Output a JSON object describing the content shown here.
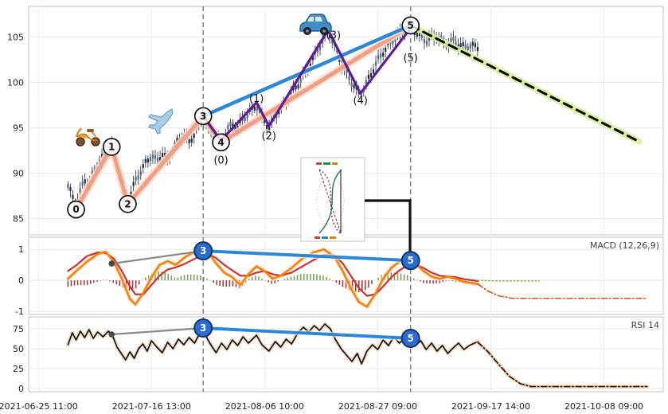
{
  "axes": {
    "x_tick_labels": [
      "2021-06-25 11:00",
      "2021-07-16 13:00",
      "2021-08-06 10:00",
      "2021-08-27 09:00",
      "2021-09-17 14:00",
      "2021-10-08 09:00"
    ],
    "x_tick_days": [
      0,
      21,
      42,
      63,
      84,
      105
    ]
  },
  "indicators": {
    "macd_label": "MACD (12,26,9)",
    "rsi_label": "RSI 14"
  },
  "colors": {
    "impulse": "#f09e86",
    "impulse_glow": "#fbd9c8",
    "blue_line": "#2e86d6",
    "purple_line": "#5e1d96",
    "projection_glow": "#d6ef9a",
    "projection": "#000000",
    "macd_fast": "#f5820b",
    "macd_signal": "#cc3333",
    "hist_pos": "#6a9a3a",
    "hist_neg": "#8e2a2a",
    "rsi_line": "#111111",
    "marker_dash": "#6f839e",
    "circle_fill": "#2a6bd4",
    "circle_border": "#16355c"
  },
  "icons": [
    {
      "name": "scooter-icon"
    },
    {
      "name": "airplane-icon"
    },
    {
      "name": "car-icon"
    },
    {
      "name": "inset-mini-chart"
    }
  ],
  "chart_data": {
    "type": "candlestick",
    "x_unit": "days since 2021-06-25 11:00",
    "xlim_days": [
      -1.8,
      116
    ],
    "panels": {
      "price": {
        "ylim": [
          83.2,
          108.4
        ],
        "ticks": [
          85,
          90,
          95,
          100,
          105
        ]
      },
      "macd": {
        "ylim": [
          -1.1,
          1.39
        ],
        "ticks": [
          1,
          0,
          -1
        ]
      },
      "rsi": {
        "ylim": [
          -4,
          90
        ],
        "ticks": [
          75,
          50,
          25,
          0
        ]
      }
    },
    "price_close_anchors": [
      [
        5.5,
        88.6
      ],
      [
        6.2,
        87.6
      ],
      [
        7,
        86.5
      ],
      [
        7.8,
        88.0
      ],
      [
        8.6,
        89.3
      ],
      [
        9.4,
        88.6
      ],
      [
        10.2,
        90.2
      ],
      [
        11,
        91.0
      ],
      [
        12,
        91.8
      ],
      [
        13,
        92.6
      ],
      [
        13.6,
        93.0
      ],
      [
        14.3,
        91.5
      ],
      [
        15,
        90.2
      ],
      [
        15.8,
        88.6
      ],
      [
        16.6,
        86.8
      ],
      [
        17.4,
        88.2
      ],
      [
        18.2,
        89.4
      ],
      [
        19,
        90.2
      ],
      [
        20,
        91.2
      ],
      [
        21,
        92.0
      ],
      [
        22,
        91.3
      ],
      [
        23,
        92.2
      ],
      [
        24,
        91.4
      ],
      [
        25,
        92.8
      ],
      [
        26,
        93.6
      ],
      [
        27,
        94.2
      ],
      [
        28,
        93.4
      ],
      [
        29,
        94.4
      ],
      [
        30,
        95.6
      ],
      [
        30.6,
        96.3
      ],
      [
        31.3,
        95.2
      ],
      [
        32,
        94.6
      ],
      [
        33,
        93.8
      ],
      [
        33.9,
        93.4
      ],
      [
        35,
        94.8
      ],
      [
        36,
        95.4
      ],
      [
        37,
        95.0
      ],
      [
        38,
        96.0
      ],
      [
        39,
        96.6
      ],
      [
        40.5,
        97.5
      ],
      [
        41.5,
        96.2
      ],
      [
        42.8,
        95.0
      ],
      [
        44,
        96.4
      ],
      [
        45,
        97.2
      ],
      [
        46,
        98.0
      ],
      [
        47,
        98.8
      ],
      [
        48,
        99.6
      ],
      [
        49,
        100.6
      ],
      [
        50,
        101.6
      ],
      [
        51,
        102.6
      ],
      [
        52,
        103.8
      ],
      [
        53,
        104.8
      ],
      [
        53.8,
        105.8
      ],
      [
        54.6,
        104.6
      ],
      [
        55.4,
        103.4
      ],
      [
        56.2,
        102.2
      ],
      [
        57,
        101.2
      ],
      [
        58,
        100.2
      ],
      [
        59,
        99.2
      ],
      [
        59.8,
        98.7
      ],
      [
        60.8,
        99.8
      ],
      [
        61.8,
        101.0
      ],
      [
        62.8,
        102.2
      ],
      [
        63.8,
        103.2
      ],
      [
        64.8,
        104.0
      ],
      [
        66,
        104.8
      ],
      [
        67,
        105.3
      ],
      [
        68,
        105.8
      ],
      [
        69.1,
        106.3
      ],
      [
        70,
        105.6
      ],
      [
        71,
        105.0
      ],
      [
        72,
        104.6
      ],
      [
        73,
        104.9
      ],
      [
        74,
        105.1
      ],
      [
        75,
        104.6
      ],
      [
        76,
        104.3
      ],
      [
        77,
        104.6
      ],
      [
        78,
        104.2
      ],
      [
        79,
        103.9
      ],
      [
        80,
        104.1
      ],
      [
        81.6,
        103.9
      ]
    ],
    "elliott_wave": {
      "points": [
        {
          "label": "0",
          "day": 7,
          "price": 86.0
        },
        {
          "label": "1",
          "day": 13.6,
          "price": 92.9
        },
        {
          "label": "2",
          "day": 16.6,
          "price": 86.6
        },
        {
          "label": "3",
          "day": 30.6,
          "price": 96.3
        },
        {
          "label": "4",
          "day": 33.9,
          "price": 93.4
        },
        {
          "label": "5",
          "day": 69.1,
          "price": 106.3
        }
      ]
    },
    "sub_wave": {
      "labels": [
        {
          "label": "(0)",
          "day": 33.9,
          "price": 91.4
        },
        {
          "label": "(1)",
          "day": 40.5,
          "price": 98.2
        },
        {
          "label": "(2)",
          "day": 42.8,
          "price": 94.1
        },
        {
          "label": "(3)",
          "day": 54.8,
          "price": 105.2
        },
        {
          "label": "(4)",
          "day": 59.8,
          "price": 98.0
        },
        {
          "label": "(5)",
          "day": 69.1,
          "price": 102.7
        }
      ],
      "purple_path": [
        [
          30.6,
          96.3
        ],
        [
          33.9,
          93.6
        ],
        [
          40.5,
          97.8
        ],
        [
          42.8,
          95.2
        ],
        [
          53.8,
          105.8
        ],
        [
          59.8,
          98.8
        ],
        [
          69.1,
          106.0
        ]
      ]
    },
    "trendlines": {
      "blue_line": {
        "from": [
          30.6,
          96.3
        ],
        "to": [
          69.1,
          106.3
        ]
      },
      "projection": {
        "from": [
          69.1,
          106.3
        ],
        "to": [
          111.5,
          93.5
        ]
      }
    },
    "vertical_markers_days": [
      30.6,
      69.1
    ],
    "macd": {
      "line": [
        [
          5.5,
          0.05
        ],
        [
          7,
          0.3
        ],
        [
          9,
          0.6
        ],
        [
          11,
          0.85
        ],
        [
          12.5,
          0.92
        ],
        [
          14,
          0.6
        ],
        [
          15.5,
          0.05
        ],
        [
          17,
          -0.6
        ],
        [
          18,
          -0.78
        ],
        [
          19.5,
          -0.4
        ],
        [
          21,
          0.1
        ],
        [
          22.5,
          0.5
        ],
        [
          24,
          0.62
        ],
        [
          25.5,
          0.5
        ],
        [
          27,
          0.72
        ],
        [
          28.5,
          0.88
        ],
        [
          30.2,
          0.98
        ],
        [
          31.5,
          0.9
        ],
        [
          33,
          0.55
        ],
        [
          34.5,
          0.25
        ],
        [
          36,
          0.1
        ],
        [
          37.5,
          -0.15
        ],
        [
          39,
          0.2
        ],
        [
          40.5,
          0.45
        ],
        [
          42,
          0.3
        ],
        [
          43.5,
          0.05
        ],
        [
          45,
          0.15
        ],
        [
          47,
          0.4
        ],
        [
          49,
          0.7
        ],
        [
          51,
          0.9
        ],
        [
          53,
          1.0
        ],
        [
          55,
          0.75
        ],
        [
          56.5,
          0.3
        ],
        [
          58,
          -0.25
        ],
        [
          59.5,
          -0.7
        ],
        [
          61,
          -0.85
        ],
        [
          62.5,
          -0.45
        ],
        [
          64,
          0.05
        ],
        [
          65.5,
          0.4
        ],
        [
          67,
          0.6
        ],
        [
          68.5,
          0.68
        ],
        [
          70,
          0.55
        ],
        [
          71.5,
          0.3
        ],
        [
          73,
          0.12
        ],
        [
          74.5,
          0.05
        ],
        [
          76,
          0.12
        ],
        [
          77.5,
          0.05
        ],
        [
          79,
          -0.05
        ],
        [
          81.6,
          -0.12
        ]
      ],
      "signal": [
        [
          5.5,
          0.3
        ],
        [
          7,
          0.48
        ],
        [
          9,
          0.78
        ],
        [
          11,
          0.9
        ],
        [
          12.5,
          0.88
        ],
        [
          14,
          0.7
        ],
        [
          15.5,
          0.3
        ],
        [
          17,
          -0.2
        ],
        [
          18,
          -0.45
        ],
        [
          19.5,
          -0.45
        ],
        [
          21,
          -0.15
        ],
        [
          22.5,
          0.15
        ],
        [
          24,
          0.35
        ],
        [
          25.5,
          0.42
        ],
        [
          27,
          0.52
        ],
        [
          28.5,
          0.65
        ],
        [
          30.2,
          0.8
        ],
        [
          31.5,
          0.85
        ],
        [
          33,
          0.72
        ],
        [
          34.5,
          0.5
        ],
        [
          36,
          0.32
        ],
        [
          37.5,
          0.15
        ],
        [
          39,
          0.15
        ],
        [
          40.5,
          0.25
        ],
        [
          42,
          0.3
        ],
        [
          43.5,
          0.2
        ],
        [
          45,
          0.15
        ],
        [
          47,
          0.25
        ],
        [
          49,
          0.45
        ],
        [
          51,
          0.65
        ],
        [
          53,
          0.82
        ],
        [
          55,
          0.8
        ],
        [
          56.5,
          0.55
        ],
        [
          58,
          0.15
        ],
        [
          59.5,
          -0.25
        ],
        [
          61,
          -0.5
        ],
        [
          62.5,
          -0.45
        ],
        [
          64,
          -0.2
        ],
        [
          65.5,
          0.1
        ],
        [
          67,
          0.32
        ],
        [
          68.5,
          0.48
        ],
        [
          70,
          0.5
        ],
        [
          71.5,
          0.4
        ],
        [
          73,
          0.25
        ],
        [
          74.5,
          0.15
        ],
        [
          76,
          0.12
        ],
        [
          77.5,
          0.1
        ],
        [
          79,
          0.04
        ],
        [
          81.6,
          -0.02
        ]
      ],
      "forecast": [
        [
          81.6,
          -0.12
        ],
        [
          83.5,
          -0.35
        ],
        [
          85.5,
          -0.5
        ],
        [
          88,
          -0.58
        ],
        [
          113,
          -0.58
        ]
      ],
      "forecast_zero": [
        [
          81.6,
          0.0
        ],
        [
          86,
          -0.02
        ],
        [
          93,
          -0.02
        ]
      ],
      "annotations": {
        "gray_from": [
          13.6,
          0.54
        ],
        "circle3": [
          30.6,
          0.95
        ],
        "circle5": [
          69.1,
          0.64
        ]
      }
    },
    "rsi": {
      "line": [
        [
          5.5,
          55
        ],
        [
          6.3,
          70
        ],
        [
          7,
          61
        ],
        [
          7.8,
          72
        ],
        [
          8.6,
          64
        ],
        [
          9.4,
          74
        ],
        [
          10.2,
          63
        ],
        [
          11,
          71
        ],
        [
          12,
          65
        ],
        [
          13,
          72
        ],
        [
          13.8,
          66
        ],
        [
          14.6,
          52
        ],
        [
          15.4,
          44
        ],
        [
          16.2,
          36
        ],
        [
          17,
          46
        ],
        [
          17.8,
          38
        ],
        [
          18.6,
          50
        ],
        [
          19.4,
          56
        ],
        [
          20.2,
          47
        ],
        [
          21,
          60
        ],
        [
          22,
          52
        ],
        [
          23,
          45
        ],
        [
          24,
          58
        ],
        [
          25,
          50
        ],
        [
          26,
          62
        ],
        [
          27,
          55
        ],
        [
          28,
          64
        ],
        [
          29,
          57
        ],
        [
          30,
          70
        ],
        [
          30.6,
          76
        ],
        [
          31.4,
          62
        ],
        [
          32.2,
          53
        ],
        [
          33,
          45
        ],
        [
          34,
          57
        ],
        [
          35,
          49
        ],
        [
          36,
          61
        ],
        [
          37,
          54
        ],
        [
          38,
          65
        ],
        [
          39,
          57
        ],
        [
          40.5,
          67
        ],
        [
          41.5,
          55
        ],
        [
          42.8,
          47
        ],
        [
          44,
          59
        ],
        [
          45,
          52
        ],
        [
          46,
          62
        ],
        [
          47,
          56
        ],
        [
          48.2,
          70
        ],
        [
          49.2,
          77
        ],
        [
          50.2,
          71
        ],
        [
          51.2,
          79
        ],
        [
          52.2,
          73
        ],
        [
          53.2,
          81
        ],
        [
          54.2,
          75
        ],
        [
          55.2,
          61
        ],
        [
          56.2,
          50
        ],
        [
          57.2,
          42
        ],
        [
          58.2,
          34
        ],
        [
          59.2,
          44
        ],
        [
          60,
          31
        ],
        [
          61,
          47
        ],
        [
          62,
          55
        ],
        [
          63,
          49
        ],
        [
          64,
          61
        ],
        [
          65,
          54
        ],
        [
          66,
          65
        ],
        [
          67,
          57
        ],
        [
          68,
          63
        ],
        [
          69.1,
          63
        ],
        [
          70,
          54
        ],
        [
          71,
          60
        ],
        [
          72,
          49
        ],
        [
          73,
          57
        ],
        [
          74,
          47
        ],
        [
          75,
          54
        ],
        [
          76,
          44
        ],
        [
          77,
          51
        ],
        [
          78,
          57
        ],
        [
          79,
          49
        ],
        [
          80,
          54
        ],
        [
          81.6,
          59
        ]
      ],
      "forecast": [
        [
          81.6,
          58
        ],
        [
          83.5,
          46
        ],
        [
          85.5,
          30
        ],
        [
          87.5,
          15
        ],
        [
          89.5,
          6
        ],
        [
          91.5,
          2.5
        ],
        [
          113,
          2.5
        ]
      ],
      "annotations": {
        "gray_from": [
          13.6,
          68
        ],
        "circle3": [
          30.6,
          76
        ],
        "circle5": [
          69.1,
          63
        ]
      }
    }
  }
}
